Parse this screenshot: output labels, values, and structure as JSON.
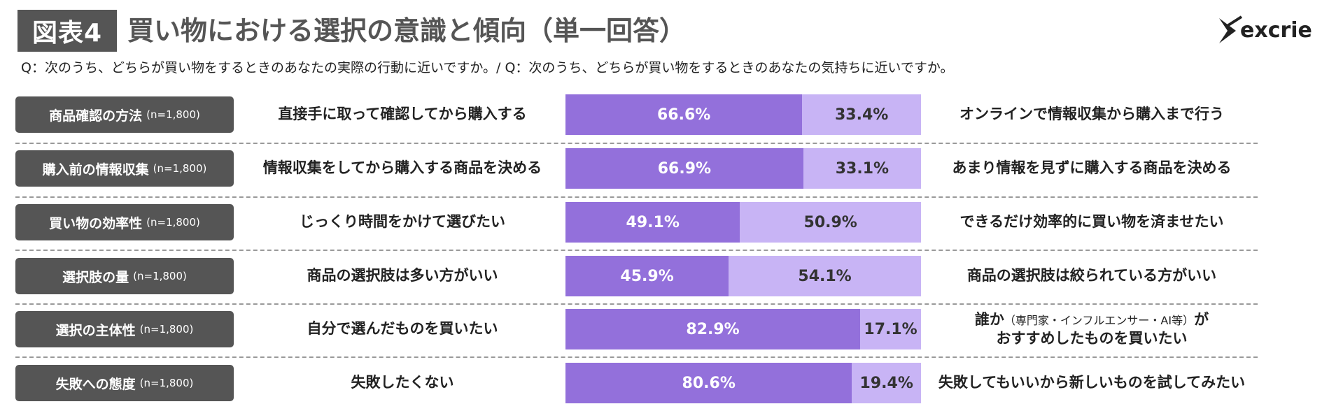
{
  "header": {
    "figure_label": "図表4",
    "title": "買い物における選択の意識と傾向（単一回答）",
    "question": "Q：次のうち、どちらが買い物をするときのあなたの実際の行動に近いですか。/ Q：次のうち、どちらが買い物をするときのあなたの気持ちに近いですか。",
    "logo_text": "excrie"
  },
  "colors": {
    "segment_a": "#9370db",
    "segment_b": "#c8b4f5",
    "label_bg": "#555555"
  },
  "chart_data": {
    "type": "bar",
    "orientation": "horizontal-stacked-100",
    "rows": [
      {
        "label": "商品確認の方法",
        "n": "(n=1,800)",
        "left": "直接手に取って確認してから購入する",
        "right": "オンラインで情報収集から購入まで行う",
        "a": 66.6,
        "b": 33.4,
        "a_label": "66.6%",
        "b_label": "33.4%"
      },
      {
        "label": "購入前の情報収集",
        "n": "(n=1,800)",
        "left": "情報収集をしてから購入する商品を決める",
        "right": "あまり情報を見ずに購入する商品を決める",
        "a": 66.9,
        "b": 33.1,
        "a_label": "66.9%",
        "b_label": "33.1%"
      },
      {
        "label": "買い物の効率性",
        "n": "(n=1,800)",
        "left": "じっくり時間をかけて選びたい",
        "right": "できるだけ効率的に買い物を済ませたい",
        "a": 49.1,
        "b": 50.9,
        "a_label": "49.1%",
        "b_label": "50.9%"
      },
      {
        "label": "選択肢の量",
        "n": "(n=1,800)",
        "left": "商品の選択肢は多い方がいい",
        "right": "商品の選択肢は絞られている方がいい",
        "a": 45.9,
        "b": 54.1,
        "a_label": "45.9%",
        "b_label": "54.1%"
      },
      {
        "label": "選択の主体性",
        "n": "(n=1,800)",
        "left": "自分で選んだものを買いたい",
        "right_line1": "誰か",
        "right_small": "（専門家・インフルエンサー・AI等）",
        "right_line1_end": "が",
        "right_line2": "おすすめしたものを買いたい",
        "a": 82.9,
        "b": 17.1,
        "a_label": "82.9%",
        "b_label": "17.1%"
      },
      {
        "label": "失敗への態度",
        "n": "(n=1,800)",
        "left": "失敗したくない",
        "right": "失敗してもいいから新しいものを試してみたい",
        "a": 80.6,
        "b": 19.4,
        "a_label": "80.6%",
        "b_label": "19.4%"
      }
    ]
  }
}
